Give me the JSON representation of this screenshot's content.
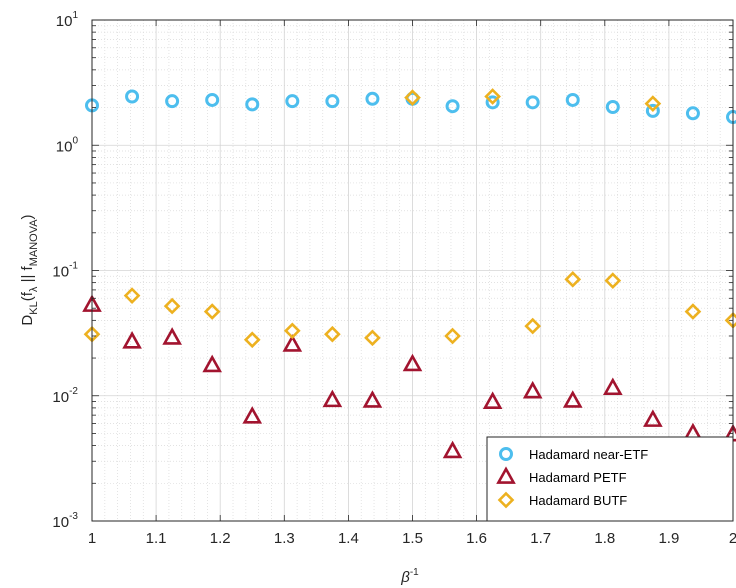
{
  "chart_data": {
    "type": "scatter",
    "title": "",
    "xlabel": {
      "base": "β",
      "sup": "-1"
    },
    "ylabel": {
      "parts": [
        {
          "t": "D",
          "s": ""
        },
        {
          "t": "KL",
          "s": "sub"
        },
        {
          "t": "(f",
          "s": ""
        },
        {
          "t": "λ",
          "s": "sub"
        },
        {
          "t": " || f",
          "s": ""
        },
        {
          "t": "MANOVA",
          "s": "sub"
        },
        {
          "t": ")",
          "s": ""
        }
      ]
    },
    "x_scale": "linear",
    "y_scale": "log",
    "xlim": [
      1,
      2
    ],
    "ylim": [
      0.001,
      10
    ],
    "x_ticks": [
      "1",
      "1.1",
      "1.2",
      "1.3",
      "1.4",
      "1.5",
      "1.6",
      "1.7",
      "1.8",
      "1.9",
      "2"
    ],
    "y_ticks": [
      {
        "base": "10",
        "exp": "-3"
      },
      {
        "base": "10",
        "exp": "-2"
      },
      {
        "base": "10",
        "exp": "-1"
      },
      {
        "base": "10",
        "exp": "0"
      },
      {
        "base": "10",
        "exp": "1"
      }
    ],
    "grid": true,
    "legend_position": "bottom-right",
    "series": [
      {
        "name": "Hadamard near-ETF",
        "marker": "circle",
        "color": "#4DBEEE",
        "x": [
          1,
          1.0625,
          1.125,
          1.1875,
          1.25,
          1.3125,
          1.375,
          1.4375,
          1.5,
          1.5625,
          1.625,
          1.6875,
          1.75,
          1.8125,
          1.875,
          1.9375,
          2
        ],
        "y": [
          2.08,
          2.45,
          2.25,
          2.3,
          2.12,
          2.25,
          2.25,
          2.35,
          2.35,
          2.05,
          2.2,
          2.2,
          2.3,
          2.02,
          1.88,
          1.8,
          1.68
        ]
      },
      {
        "name": "Hadamard PETF",
        "marker": "triangle",
        "color": "#A2142F",
        "x": [
          1,
          1.0625,
          1.125,
          1.1875,
          1.25,
          1.3125,
          1.375,
          1.4375,
          1.5,
          1.5625,
          1.625,
          1.6875,
          1.75,
          1.8125,
          1.875,
          1.9375,
          2
        ],
        "y": [
          0.053,
          0.027,
          0.029,
          0.0175,
          0.0068,
          0.0255,
          0.0092,
          0.0091,
          0.0178,
          0.0036,
          0.0089,
          0.0108,
          0.0091,
          0.0115,
          0.0064,
          0.005,
          0.0049
        ]
      },
      {
        "name": "Hadamard BUTF",
        "marker": "diamond",
        "color": "#EDB120",
        "x": [
          1,
          1.0625,
          1.125,
          1.1875,
          1.25,
          1.3125,
          1.375,
          1.4375,
          1.5,
          1.5625,
          1.625,
          1.6875,
          1.75,
          1.8125,
          1.875,
          1.9375,
          2
        ],
        "y": [
          0.031,
          0.063,
          0.052,
          0.047,
          0.028,
          0.033,
          0.031,
          0.029,
          2.4,
          0.03,
          2.45,
          0.036,
          0.085,
          0.083,
          2.15,
          0.047,
          0.04
        ]
      }
    ]
  }
}
